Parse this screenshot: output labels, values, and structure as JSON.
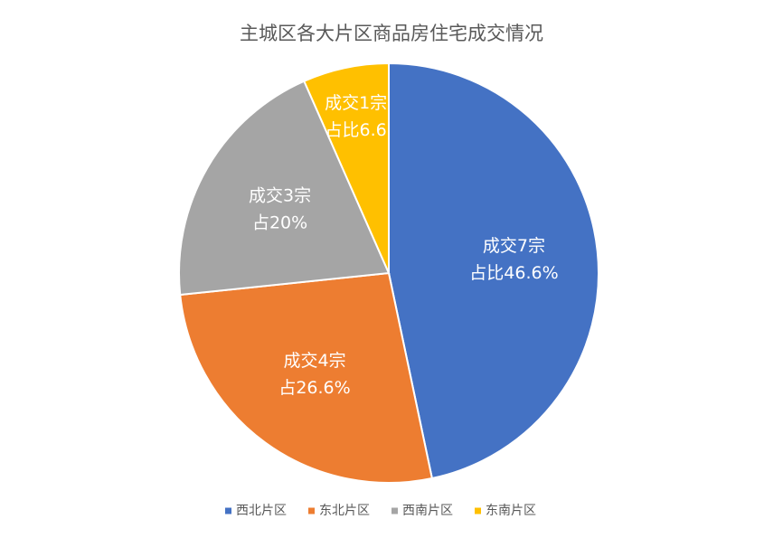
{
  "chart_data": {
    "type": "pie",
    "title": "主城区各大片区商品房住宅成交情况",
    "categories": [
      "西北片区",
      "东北片区",
      "西南片区",
      "东南片区"
    ],
    "values": [
      46.6,
      26.6,
      20,
      6.6
    ],
    "value_labels": [
      [
        "成交7宗",
        "占比46.6%"
      ],
      [
        "成交4宗",
        "占26.6%"
      ],
      [
        "成交3宗",
        "占20%"
      ],
      [
        "成交1宗",
        "占比6.6"
      ]
    ],
    "colors": [
      "#4472c4",
      "#ed7d31",
      "#a5a5a5",
      "#ffc000"
    ],
    "legend": "bottom"
  }
}
